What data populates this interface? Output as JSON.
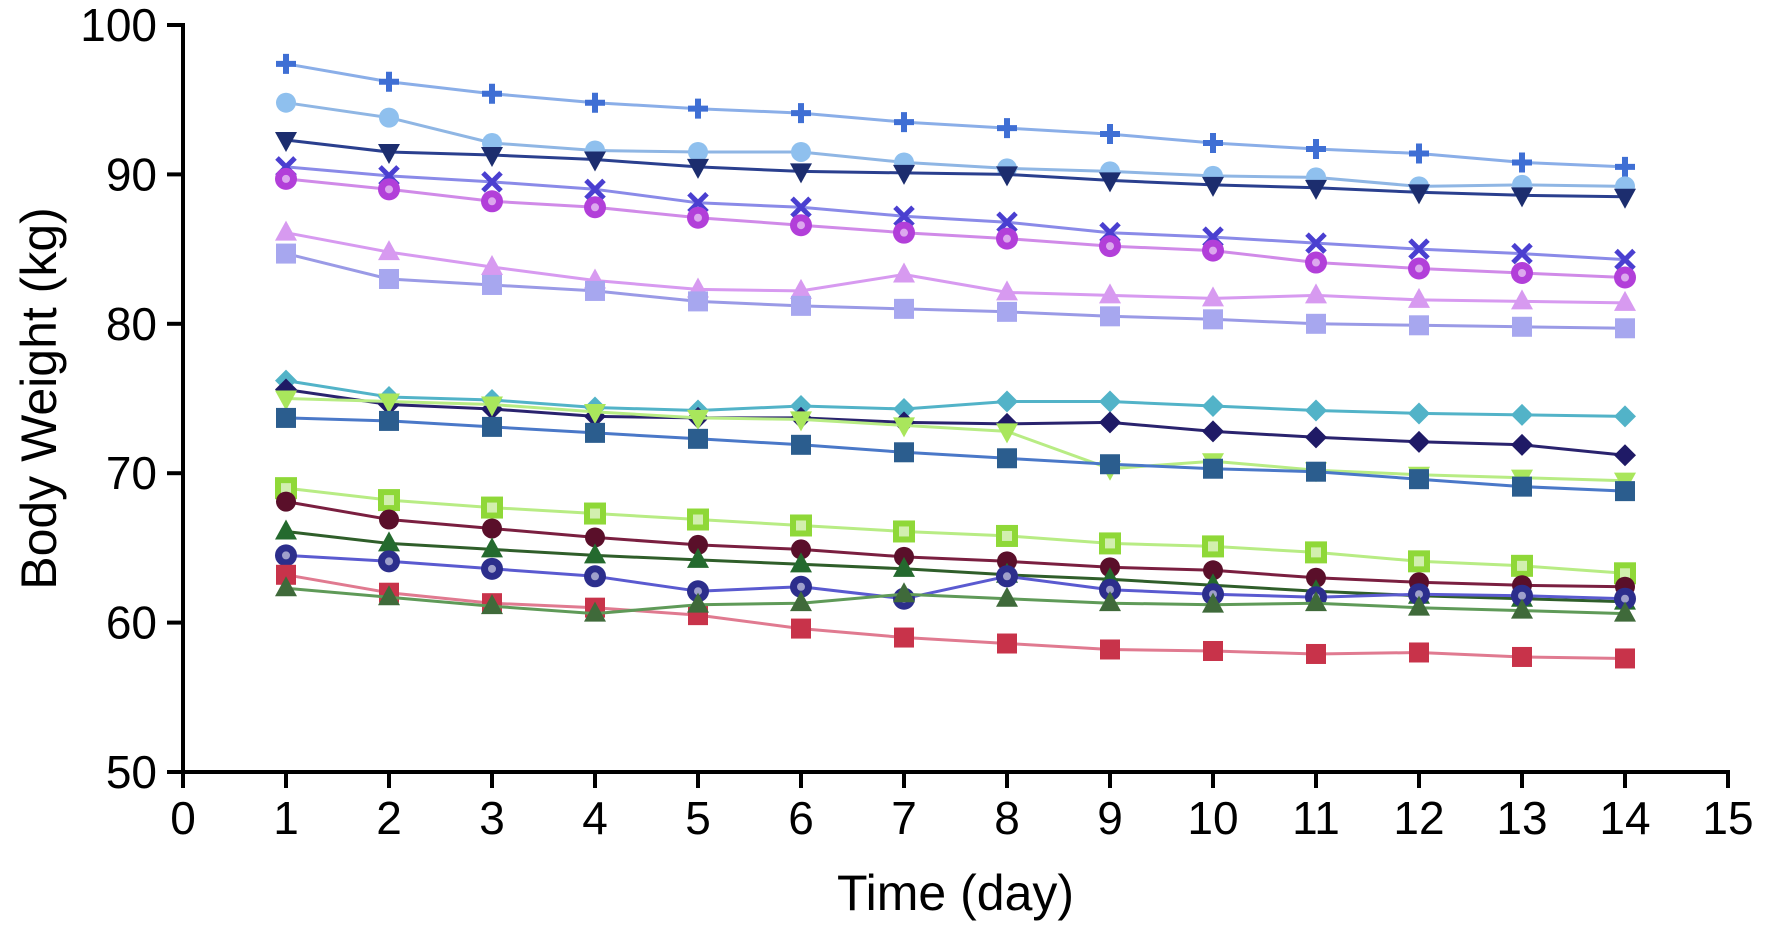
{
  "chart_data": {
    "type": "line",
    "title": "",
    "xlabel": "Time (day)",
    "ylabel": "Body Weight (kg)",
    "xlim": [
      0,
      15
    ],
    "ylim": [
      50,
      100
    ],
    "xticks": [
      "0",
      "1",
      "2",
      "3",
      "4",
      "5",
      "6",
      "7",
      "8",
      "9",
      "10",
      "11",
      "12",
      "13",
      "14",
      "15"
    ],
    "yticks": [
      "50",
      "60",
      "70",
      "80",
      "90",
      "100"
    ],
    "grid": false,
    "legend": "none",
    "x": [
      1,
      2,
      3,
      4,
      5,
      6,
      7,
      8,
      9,
      10,
      11,
      12,
      13,
      14
    ],
    "series": [
      {
        "marker": "plus",
        "color": "#3f6fd4",
        "line": "#8aaee8",
        "values": [
          97.4,
          96.2,
          95.4,
          94.8,
          94.4,
          94.1,
          93.5,
          93.1,
          92.7,
          92.1,
          91.7,
          91.4,
          90.8,
          90.5
        ]
      },
      {
        "marker": "circle",
        "color": "#8fc0ee",
        "line": "#8fb6e4",
        "values": [
          94.8,
          93.8,
          92.1,
          91.6,
          91.5,
          91.5,
          90.8,
          90.4,
          90.2,
          89.9,
          89.8,
          89.2,
          89.3,
          89.2
        ]
      },
      {
        "marker": "triangle-down",
        "color": "#1c2d6e",
        "line": "#2a3f8e",
        "values": [
          92.3,
          91.5,
          91.3,
          91.0,
          90.5,
          90.2,
          90.1,
          90.0,
          89.6,
          89.3,
          89.1,
          88.8,
          88.6,
          88.5
        ]
      },
      {
        "marker": "cross",
        "color": "#4a3fd0",
        "line": "#8a8ae8",
        "values": [
          90.5,
          89.9,
          89.5,
          89.0,
          88.1,
          87.8,
          87.2,
          86.8,
          86.1,
          85.8,
          85.4,
          85.0,
          84.7,
          84.3
        ]
      },
      {
        "marker": "circle-dot",
        "color": "#b23fd9",
        "line": "#d08ae8",
        "values": [
          89.7,
          89.0,
          88.2,
          87.8,
          87.1,
          86.6,
          86.1,
          85.7,
          85.2,
          84.9,
          84.1,
          83.7,
          83.4,
          83.1
        ]
      },
      {
        "marker": "triangle-up",
        "color": "#d79af0",
        "line": "#d79af0",
        "values": [
          86.1,
          84.8,
          83.8,
          82.9,
          82.3,
          82.2,
          83.3,
          82.1,
          81.9,
          81.7,
          81.9,
          81.6,
          81.5,
          81.4
        ]
      },
      {
        "marker": "square",
        "color": "#a7a7ef",
        "line": "#9a9ae6",
        "values": [
          84.7,
          83.0,
          82.6,
          82.2,
          81.5,
          81.2,
          81.0,
          80.8,
          80.5,
          80.3,
          80.0,
          79.9,
          79.8,
          79.7
        ]
      },
      {
        "marker": "diamond",
        "color": "#52b3c8",
        "line": "#52b3c8",
        "values": [
          76.2,
          75.1,
          74.9,
          74.4,
          74.2,
          74.5,
          74.3,
          74.8,
          74.8,
          74.5,
          74.2,
          74.0,
          73.9,
          73.8
        ]
      },
      {
        "marker": "diamond",
        "color": "#1f1a66",
        "line": "#2a236e",
        "values": [
          75.6,
          74.6,
          74.3,
          73.8,
          73.7,
          73.7,
          73.4,
          73.3,
          73.4,
          72.8,
          72.4,
          72.1,
          71.9,
          71.2
        ]
      },
      {
        "marker": "triangle-down",
        "color": "#a9e65c",
        "line": "#b8ec84",
        "values": [
          75.0,
          74.8,
          74.6,
          74.1,
          73.7,
          73.6,
          73.2,
          72.8,
          70.3,
          70.8,
          70.2,
          69.9,
          69.7,
          69.5
        ]
      },
      {
        "marker": "square",
        "color": "#2b5d8e",
        "line": "#4a78c8",
        "values": [
          73.7,
          73.5,
          73.1,
          72.7,
          72.3,
          71.9,
          71.4,
          71.0,
          70.6,
          70.3,
          70.1,
          69.6,
          69.1,
          68.8
        ]
      },
      {
        "marker": "square-dot",
        "color": "#8fd838",
        "line": "#b8ec84",
        "values": [
          69.0,
          68.2,
          67.7,
          67.3,
          66.9,
          66.5,
          66.1,
          65.8,
          65.3,
          65.1,
          64.7,
          64.1,
          63.8,
          63.3
        ]
      },
      {
        "marker": "circle",
        "color": "#5a0f2a",
        "line": "#7a1f40",
        "values": [
          68.1,
          66.9,
          66.3,
          65.7,
          65.2,
          64.9,
          64.4,
          64.1,
          63.7,
          63.5,
          63.0,
          62.7,
          62.5,
          62.4
        ]
      },
      {
        "marker": "triangle-up",
        "color": "#246a2e",
        "line": "#2f5e2a",
        "values": [
          66.1,
          65.3,
          64.9,
          64.5,
          64.2,
          63.9,
          63.6,
          63.2,
          62.9,
          62.5,
          62.1,
          61.8,
          61.6,
          61.4
        ]
      },
      {
        "marker": "circle-dot",
        "color": "#2c2e8c",
        "line": "#5a5ad0",
        "values": [
          64.5,
          64.1,
          63.6,
          63.1,
          62.1,
          62.4,
          61.6,
          63.1,
          62.2,
          61.9,
          61.7,
          61.9,
          61.8,
          61.6
        ]
      },
      {
        "marker": "square",
        "color": "#c8334a",
        "line": "#e07a90",
        "values": [
          63.2,
          62.0,
          61.3,
          61.0,
          60.5,
          59.6,
          59.0,
          58.6,
          58.2,
          58.1,
          57.9,
          58.0,
          57.7,
          57.6
        ]
      },
      {
        "marker": "triangle-up",
        "color": "#3f6a3a",
        "line": "#5f9a58",
        "values": [
          62.3,
          61.7,
          61.1,
          60.6,
          61.2,
          61.3,
          61.9,
          61.6,
          61.3,
          61.2,
          61.3,
          61.0,
          60.8,
          60.6
        ]
      }
    ]
  }
}
